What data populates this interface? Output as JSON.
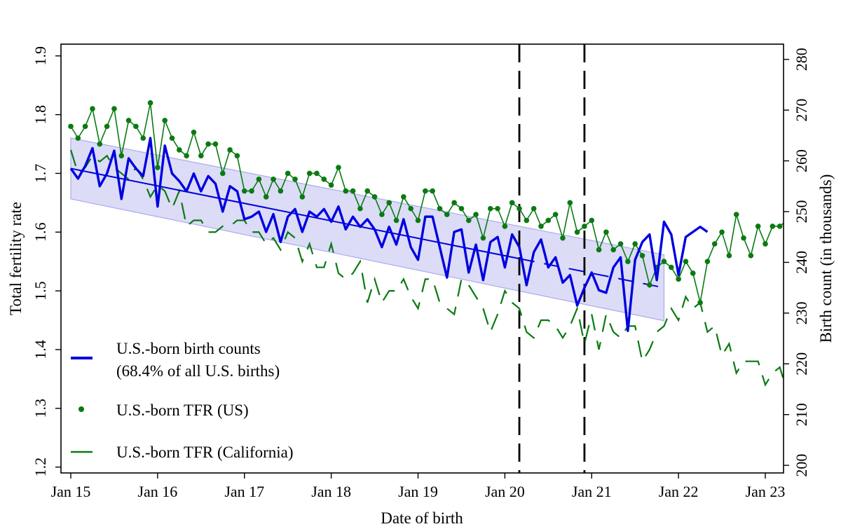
{
  "chart_data": {
    "type": "line",
    "xlabel": "Date of birth",
    "ylabel_left": "Total fertility rate",
    "ylabel_right": "Birth count (in thousands)",
    "x_ticks": [
      "Jan 15",
      "Jan 16",
      "Jan 17",
      "Jan 18",
      "Jan 19",
      "Jan 20",
      "Jan 21",
      "Jan 22",
      "Jan 23"
    ],
    "y_left_ticks": [
      "1.2",
      "1.3",
      "1.4",
      "1.5",
      "1.6",
      "1.7",
      "1.8",
      "1.9"
    ],
    "y_right_ticks": [
      "200",
      "210",
      "220",
      "230",
      "240",
      "250",
      "260",
      "270",
      "280"
    ],
    "x_range": [
      "2015-01",
      "2023-01"
    ],
    "y_left_range": [
      1.19,
      1.92
    ],
    "y_right_range": [
      198.5,
      283
    ],
    "grid": false,
    "legend_position": "bottom-left",
    "vertical_reference_lines": [
      "2020-03",
      "2020-12"
    ],
    "colors": {
      "birth_counts": "#0000e0",
      "tfr_us": "#0a7a12",
      "tfr_california": "#0a7a12",
      "band_fill": "#dcdcf7",
      "band_stroke": "#aaaaee"
    },
    "series": [
      {
        "name": "U.S.-born birth counts",
        "name_line2": "(68.4% of all U.S. births)",
        "axis": "right",
        "style": "solid-thick",
        "start": "2015-01",
        "values": [
          258.5,
          256.5,
          259,
          262.5,
          255,
          257.5,
          262,
          252.5,
          260.5,
          258.5,
          257,
          264.5,
          251,
          263,
          257.5,
          256,
          254,
          257.5,
          254,
          257,
          255.5,
          250,
          255,
          254,
          248.5,
          249,
          250,
          246,
          249.5,
          244,
          249,
          250.5,
          246,
          250,
          249,
          250.5,
          248,
          251,
          246.5,
          249,
          247,
          248.5,
          246.5,
          243,
          247,
          243.5,
          248.5,
          243,
          240.5,
          249,
          249,
          243,
          237,
          246,
          246.5,
          238,
          243.5,
          236.5,
          244,
          245,
          239,
          245.5,
          243,
          235.5,
          242,
          244.5,
          239,
          241,
          236,
          237.5,
          231.5,
          235,
          238,
          234.5,
          234,
          239,
          241,
          226.5,
          240.5,
          244,
          245.5,
          236.5,
          248,
          245.5,
          237.5,
          245,
          246,
          247,
          246
        ],
        "trend": {
          "start": "2015-01",
          "end": "2021-11",
          "values_at_ends": [
            258.5,
            235.0
          ],
          "solid_until": "2020-03"
        },
        "ci_band": {
          "start": "2015-01",
          "end": "2021-11",
          "upper": [
            264.5,
            241.5
          ],
          "lower": [
            252.5,
            228.5
          ]
        }
      },
      {
        "name": "U.S.-born TFR (US)",
        "axis": "left",
        "style": "line-with-dots",
        "start": "2015-01",
        "values": [
          1.78,
          1.76,
          1.78,
          1.81,
          1.75,
          1.78,
          1.81,
          1.73,
          1.79,
          1.78,
          1.76,
          1.82,
          1.71,
          1.79,
          1.76,
          1.74,
          1.73,
          1.77,
          1.73,
          1.75,
          1.75,
          1.7,
          1.74,
          1.73,
          1.67,
          1.67,
          1.69,
          1.66,
          1.69,
          1.67,
          1.7,
          1.69,
          1.66,
          1.7,
          1.7,
          1.69,
          1.68,
          1.71,
          1.67,
          1.67,
          1.64,
          1.67,
          1.66,
          1.63,
          1.65,
          1.62,
          1.66,
          1.64,
          1.62,
          1.67,
          1.67,
          1.64,
          1.63,
          1.65,
          1.64,
          1.62,
          1.63,
          1.59,
          1.64,
          1.64,
          1.61,
          1.65,
          1.64,
          1.62,
          1.64,
          1.61,
          1.62,
          1.63,
          1.59,
          1.65,
          1.6,
          1.61,
          1.62,
          1.57,
          1.6,
          1.57,
          1.58,
          1.55,
          1.58,
          1.56,
          1.51,
          1.54,
          1.55,
          1.54,
          1.52,
          1.55,
          1.53,
          1.48,
          1.55,
          1.58,
          1.6,
          1.56,
          1.63,
          1.59,
          1.56,
          1.61,
          1.58,
          1.61,
          1.61,
          1.62,
          1.6,
          1.63
        ],
        "values_2020_on": "see values"
      },
      {
        "name": "U.S.-born TFR (California)",
        "axis": "left",
        "style": "long-dash",
        "start": "2015-01",
        "values": [
          1.74,
          1.7,
          1.71,
          1.73,
          1.72,
          1.73,
          1.71,
          1.7,
          1.69,
          1.71,
          1.69,
          1.66,
          1.68,
          1.67,
          1.64,
          1.67,
          1.61,
          1.62,
          1.62,
          1.6,
          1.6,
          1.61,
          1.61,
          1.62,
          1.62,
          1.6,
          1.6,
          1.58,
          1.59,
          1.57,
          1.6,
          1.59,
          1.55,
          1.58,
          1.54,
          1.54,
          1.58,
          1.53,
          1.52,
          1.53,
          1.55,
          1.48,
          1.52,
          1.48,
          1.5,
          1.5,
          1.52,
          1.49,
          1.47,
          1.52,
          1.52,
          1.48,
          1.47,
          1.46,
          1.52,
          1.51,
          1.49,
          1.47,
          1.43,
          1.46,
          1.5,
          1.48,
          1.47,
          1.43,
          1.42,
          1.45,
          1.45,
          1.44,
          1.42,
          1.44,
          1.47,
          1.41,
          1.46,
          1.4,
          1.46,
          1.43,
          1.42,
          1.44,
          1.44,
          1.38,
          1.4,
          1.43,
          1.44,
          1.47,
          1.45,
          1.49,
          1.47,
          1.48,
          1.43,
          1.44,
          1.39,
          1.41,
          1.36,
          1.38,
          1.38,
          1.38,
          1.34,
          1.36,
          1.37,
          1.33,
          1.41,
          1.42,
          1.37,
          1.32
        ],
        "start_overlay": "2015-01"
      }
    ]
  },
  "legend": {
    "birth_counts_line1": "U.S.-born birth counts",
    "birth_counts_line2": "(68.4% of all U.S. births)",
    "tfr_us": "U.S.-born TFR (US)",
    "tfr_california": "U.S.-born TFR (California)"
  }
}
